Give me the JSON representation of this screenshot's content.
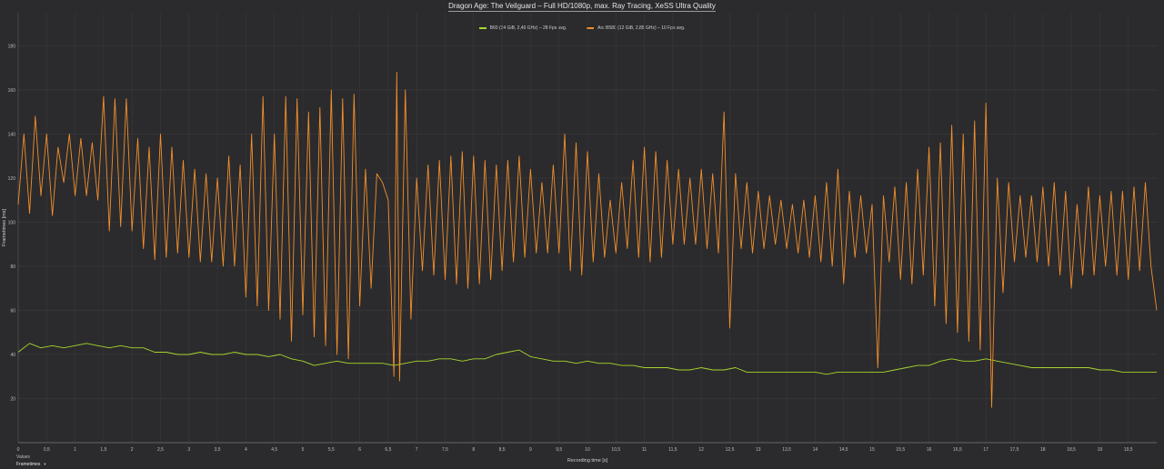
{
  "chart_data": {
    "type": "line",
    "title": "Dragon Age: The Veilguard – Full HD/1080p, max. Ray Tracing, XeSS Ultra Quality",
    "xlabel": "Recording time [s]",
    "ylabel": "Frametimes [ms]",
    "xlim": [
      0,
      20
    ],
    "ylim": [
      0,
      195
    ],
    "xticks": [
      "0",
      "0,5",
      "1",
      "1,5",
      "2",
      "2,5",
      "3",
      "3,5",
      "4",
      "4,5",
      "5",
      "5,5",
      "6",
      "6,5",
      "7",
      "7,5",
      "8",
      "8,5",
      "9",
      "9,5",
      "10",
      "10,5",
      "11",
      "11,5",
      "12",
      "12,5",
      "13",
      "13,5",
      "14",
      "14,5",
      "15",
      "15,5",
      "16",
      "16,5",
      "17",
      "17,5",
      "18",
      "18,5",
      "19",
      "19,5"
    ],
    "yticks": [
      "20",
      "40",
      "60",
      "80",
      "100",
      "120",
      "140",
      "160",
      "180"
    ],
    "grid": true,
    "legend_position": "top-center",
    "series": [
      {
        "name": "B60 (24 GiB, 2,40 GHz) – 28 Fps avg.",
        "color": "#a6d62c",
        "points": [
          [
            0.0,
            41
          ],
          [
            0.2,
            45
          ],
          [
            0.4,
            43
          ],
          [
            0.6,
            44
          ],
          [
            0.8,
            43
          ],
          [
            1.0,
            44
          ],
          [
            1.2,
            45
          ],
          [
            1.4,
            44
          ],
          [
            1.6,
            43
          ],
          [
            1.8,
            44
          ],
          [
            2.0,
            43
          ],
          [
            2.2,
            43
          ],
          [
            2.4,
            41
          ],
          [
            2.6,
            41
          ],
          [
            2.8,
            40
          ],
          [
            3.0,
            40
          ],
          [
            3.2,
            41
          ],
          [
            3.4,
            40
          ],
          [
            3.6,
            40
          ],
          [
            3.8,
            41
          ],
          [
            4.0,
            40
          ],
          [
            4.2,
            40
          ],
          [
            4.4,
            39
          ],
          [
            4.6,
            40
          ],
          [
            4.8,
            38
          ],
          [
            5.0,
            37
          ],
          [
            5.2,
            35
          ],
          [
            5.4,
            36
          ],
          [
            5.6,
            37
          ],
          [
            5.8,
            36
          ],
          [
            6.0,
            36
          ],
          [
            6.2,
            36
          ],
          [
            6.4,
            36
          ],
          [
            6.6,
            35
          ],
          [
            6.8,
            36
          ],
          [
            7.0,
            37
          ],
          [
            7.2,
            37
          ],
          [
            7.4,
            38
          ],
          [
            7.6,
            38
          ],
          [
            7.8,
            37
          ],
          [
            8.0,
            38
          ],
          [
            8.2,
            38
          ],
          [
            8.4,
            40
          ],
          [
            8.6,
            41
          ],
          [
            8.8,
            42
          ],
          [
            9.0,
            39
          ],
          [
            9.2,
            38
          ],
          [
            9.4,
            37
          ],
          [
            9.6,
            37
          ],
          [
            9.8,
            36
          ],
          [
            10.0,
            37
          ],
          [
            10.2,
            36
          ],
          [
            10.4,
            36
          ],
          [
            10.6,
            35
          ],
          [
            10.8,
            35
          ],
          [
            11.0,
            34
          ],
          [
            11.2,
            34
          ],
          [
            11.4,
            34
          ],
          [
            11.6,
            33
          ],
          [
            11.8,
            33
          ],
          [
            12.0,
            34
          ],
          [
            12.2,
            33
          ],
          [
            12.4,
            33
          ],
          [
            12.6,
            34
          ],
          [
            12.8,
            32
          ],
          [
            13.0,
            32
          ],
          [
            13.2,
            32
          ],
          [
            13.4,
            32
          ],
          [
            13.6,
            32
          ],
          [
            13.8,
            32
          ],
          [
            14.0,
            32
          ],
          [
            14.2,
            31
          ],
          [
            14.4,
            32
          ],
          [
            14.6,
            32
          ],
          [
            14.8,
            32
          ],
          [
            15.0,
            32
          ],
          [
            15.2,
            32
          ],
          [
            15.4,
            33
          ],
          [
            15.6,
            34
          ],
          [
            15.8,
            35
          ],
          [
            16.0,
            35
          ],
          [
            16.2,
            37
          ],
          [
            16.4,
            38
          ],
          [
            16.6,
            37
          ],
          [
            16.8,
            37
          ],
          [
            17.0,
            38
          ],
          [
            17.2,
            37
          ],
          [
            17.4,
            36
          ],
          [
            17.6,
            35
          ],
          [
            17.8,
            34
          ],
          [
            18.0,
            34
          ],
          [
            18.2,
            34
          ],
          [
            18.4,
            34
          ],
          [
            18.6,
            34
          ],
          [
            18.8,
            34
          ],
          [
            19.0,
            33
          ],
          [
            19.2,
            33
          ],
          [
            19.4,
            32
          ],
          [
            19.6,
            32
          ],
          [
            19.8,
            32
          ],
          [
            20.0,
            32
          ]
        ]
      },
      {
        "name": "Arc B580 (12 GiB, 2,85 GHz) – 10 Fps avg.",
        "color": "#f28e2b",
        "points": [
          [
            0.0,
            108
          ],
          [
            0.1,
            140
          ],
          [
            0.2,
            104
          ],
          [
            0.3,
            148
          ],
          [
            0.4,
            112
          ],
          [
            0.5,
            140
          ],
          [
            0.6,
            103
          ],
          [
            0.7,
            134
          ],
          [
            0.8,
            118
          ],
          [
            0.9,
            140
          ],
          [
            1.0,
            112
          ],
          [
            1.1,
            138
          ],
          [
            1.2,
            112
          ],
          [
            1.3,
            136
          ],
          [
            1.4,
            110
          ],
          [
            1.5,
            157
          ],
          [
            1.6,
            96
          ],
          [
            1.7,
            156
          ],
          [
            1.8,
            98
          ],
          [
            1.9,
            156
          ],
          [
            2.0,
            96
          ],
          [
            2.1,
            138
          ],
          [
            2.2,
            88
          ],
          [
            2.3,
            134
          ],
          [
            2.4,
            83
          ],
          [
            2.5,
            140
          ],
          [
            2.6,
            84
          ],
          [
            2.7,
            134
          ],
          [
            2.8,
            86
          ],
          [
            2.9,
            128
          ],
          [
            3.0,
            84
          ],
          [
            3.1,
            124
          ],
          [
            3.2,
            82
          ],
          [
            3.3,
            122
          ],
          [
            3.4,
            82
          ],
          [
            3.5,
            120
          ],
          [
            3.6,
            80
          ],
          [
            3.7,
            130
          ],
          [
            3.8,
            80
          ],
          [
            3.9,
            126
          ],
          [
            4.0,
            66
          ],
          [
            4.1,
            140
          ],
          [
            4.2,
            62
          ],
          [
            4.3,
            157
          ],
          [
            4.4,
            60
          ],
          [
            4.5,
            140
          ],
          [
            4.6,
            56
          ],
          [
            4.7,
            157
          ],
          [
            4.8,
            46
          ],
          [
            4.9,
            156
          ],
          [
            5.0,
            58
          ],
          [
            5.1,
            150
          ],
          [
            5.2,
            48
          ],
          [
            5.3,
            152
          ],
          [
            5.4,
            44
          ],
          [
            5.5,
            160
          ],
          [
            5.6,
            40
          ],
          [
            5.7,
            156
          ],
          [
            5.8,
            38
          ],
          [
            5.9,
            158
          ],
          [
            6.0,
            62
          ],
          [
            6.1,
            124
          ],
          [
            6.2,
            70
          ],
          [
            6.3,
            122
          ],
          [
            6.4,
            118
          ],
          [
            6.5,
            110
          ],
          [
            6.6,
            30
          ],
          [
            6.65,
            168
          ],
          [
            6.7,
            28
          ],
          [
            6.8,
            160
          ],
          [
            6.9,
            56
          ],
          [
            7.0,
            120
          ],
          [
            7.1,
            78
          ],
          [
            7.2,
            126
          ],
          [
            7.3,
            76
          ],
          [
            7.4,
            128
          ],
          [
            7.5,
            74
          ],
          [
            7.6,
            130
          ],
          [
            7.7,
            72
          ],
          [
            7.8,
            132
          ],
          [
            7.9,
            70
          ],
          [
            8.0,
            130
          ],
          [
            8.1,
            72
          ],
          [
            8.2,
            128
          ],
          [
            8.3,
            74
          ],
          [
            8.4,
            126
          ],
          [
            8.5,
            78
          ],
          [
            8.6,
            128
          ],
          [
            8.7,
            82
          ],
          [
            8.8,
            130
          ],
          [
            8.9,
            84
          ],
          [
            9.0,
            124
          ],
          [
            9.1,
            86
          ],
          [
            9.2,
            118
          ],
          [
            9.3,
            86
          ],
          [
            9.4,
            126
          ],
          [
            9.5,
            86
          ],
          [
            9.6,
            140
          ],
          [
            9.7,
            78
          ],
          [
            9.8,
            136
          ],
          [
            9.9,
            76
          ],
          [
            10.0,
            132
          ],
          [
            10.1,
            82
          ],
          [
            10.2,
            122
          ],
          [
            10.3,
            84
          ],
          [
            10.4,
            110
          ],
          [
            10.5,
            86
          ],
          [
            10.6,
            118
          ],
          [
            10.7,
            88
          ],
          [
            10.8,
            128
          ],
          [
            10.9,
            84
          ],
          [
            11.0,
            134
          ],
          [
            11.1,
            82
          ],
          [
            11.2,
            132
          ],
          [
            11.3,
            84
          ],
          [
            11.4,
            128
          ],
          [
            11.5,
            90
          ],
          [
            11.6,
            124
          ],
          [
            11.7,
            90
          ],
          [
            11.8,
            120
          ],
          [
            11.9,
            90
          ],
          [
            12.0,
            124
          ],
          [
            12.1,
            88
          ],
          [
            12.2,
            122
          ],
          [
            12.3,
            86
          ],
          [
            12.4,
            150
          ],
          [
            12.5,
            52
          ],
          [
            12.6,
            122
          ],
          [
            12.7,
            88
          ],
          [
            12.8,
            118
          ],
          [
            12.9,
            86
          ],
          [
            13.0,
            114
          ],
          [
            13.1,
            88
          ],
          [
            13.2,
            112
          ],
          [
            13.3,
            90
          ],
          [
            13.4,
            110
          ],
          [
            13.5,
            88
          ],
          [
            13.6,
            108
          ],
          [
            13.7,
            86
          ],
          [
            13.8,
            110
          ],
          [
            13.9,
            84
          ],
          [
            14.0,
            112
          ],
          [
            14.1,
            82
          ],
          [
            14.2,
            118
          ],
          [
            14.3,
            80
          ],
          [
            14.4,
            124
          ],
          [
            14.5,
            72
          ],
          [
            14.6,
            114
          ],
          [
            14.7,
            84
          ],
          [
            14.8,
            112
          ],
          [
            14.9,
            86
          ],
          [
            15.0,
            108
          ],
          [
            15.1,
            34
          ],
          [
            15.2,
            112
          ],
          [
            15.3,
            82
          ],
          [
            15.4,
            116
          ],
          [
            15.5,
            74
          ],
          [
            15.6,
            118
          ],
          [
            15.7,
            72
          ],
          [
            15.8,
            124
          ],
          [
            15.9,
            76
          ],
          [
            16.0,
            134
          ],
          [
            16.1,
            62
          ],
          [
            16.2,
            136
          ],
          [
            16.3,
            54
          ],
          [
            16.4,
            144
          ],
          [
            16.5,
            50
          ],
          [
            16.6,
            140
          ],
          [
            16.7,
            46
          ],
          [
            16.8,
            146
          ],
          [
            16.9,
            42
          ],
          [
            17.0,
            154
          ],
          [
            17.1,
            16
          ],
          [
            17.2,
            120
          ],
          [
            17.3,
            68
          ],
          [
            17.4,
            118
          ],
          [
            17.5,
            82
          ],
          [
            17.6,
            112
          ],
          [
            17.7,
            84
          ],
          [
            17.8,
            112
          ],
          [
            17.9,
            82
          ],
          [
            18.0,
            116
          ],
          [
            18.1,
            80
          ],
          [
            18.2,
            118
          ],
          [
            18.3,
            76
          ],
          [
            18.4,
            114
          ],
          [
            18.5,
            70
          ],
          [
            18.6,
            108
          ],
          [
            18.7,
            76
          ],
          [
            18.8,
            116
          ],
          [
            18.9,
            76
          ],
          [
            19.0,
            112
          ],
          [
            19.1,
            80
          ],
          [
            19.2,
            114
          ],
          [
            19.3,
            76
          ],
          [
            19.4,
            114
          ],
          [
            19.5,
            74
          ],
          [
            19.6,
            116
          ],
          [
            19.7,
            78
          ],
          [
            19.8,
            118
          ],
          [
            19.9,
            80
          ],
          [
            20.0,
            60
          ]
        ]
      }
    ]
  },
  "footer": {
    "small_label": "Values",
    "dropdown_label": "Frametimes"
  }
}
